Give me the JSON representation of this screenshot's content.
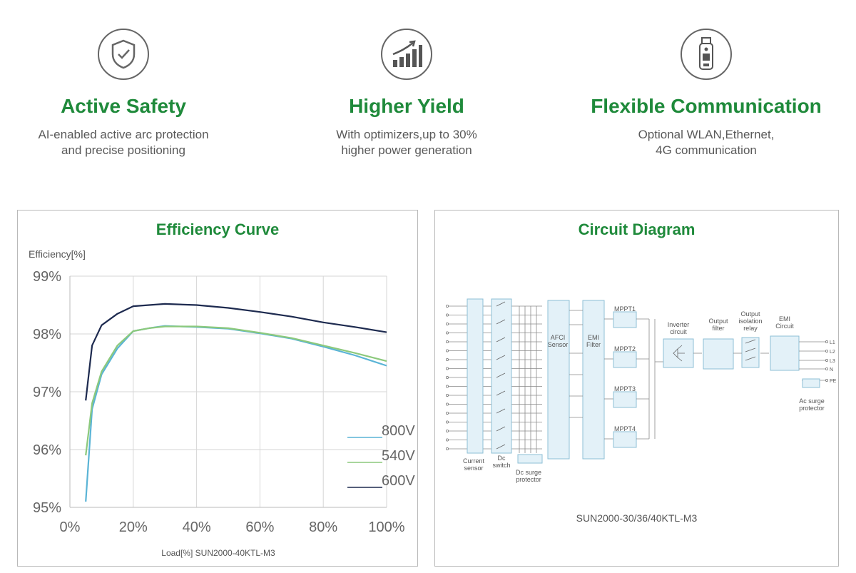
{
  "features": [
    {
      "title": "Active Safety",
      "desc_lines": [
        "AI-enabled active arc protection",
        "and precise positioning"
      ],
      "icon": "shield-check-icon"
    },
    {
      "title": "Higher Yield",
      "desc_lines": [
        "With optimizers,up to 30%",
        "higher power generation"
      ],
      "icon": "bar-chart-up-icon"
    },
    {
      "title": "Flexible Communication",
      "desc_lines": [
        "Optional WLAN,Ethernet,",
        "4G communication"
      ],
      "icon": "dongle-icon"
    }
  ],
  "efficiency_panel": {
    "title": "Efficiency Curve"
  },
  "circuit_panel": {
    "title": "Circuit Diagram",
    "caption": "SUN2000-30/36/40KTL-M3",
    "labels": {
      "current_sensor": [
        "Current",
        "sensor"
      ],
      "dc_switch": [
        "Dc",
        "switch"
      ],
      "dc_surge": [
        "Dc surge",
        "protector"
      ],
      "afci": [
        "AFCI",
        "Sensor"
      ],
      "emi_filter": [
        "EMI",
        "Filter"
      ],
      "mppt": [
        "MPPT1",
        "MPPT2",
        "MPPT3",
        "MPPT4"
      ],
      "inverter": [
        "Inverter",
        "circuit"
      ],
      "output_filter": [
        "Output",
        "filter"
      ],
      "isolation_relay": [
        "Output",
        "isolation",
        "relay"
      ],
      "emi_circuit": [
        "EMI",
        "Circuit"
      ],
      "ac_surge": [
        "Ac surge",
        "protector"
      ],
      "lines": [
        "L1",
        "L2",
        "L3",
        "N",
        "PE"
      ]
    }
  },
  "colors": {
    "accent": "#1f8a3b",
    "s800": "#5ab4d6",
    "s540": "#8cc97c",
    "s600": "#1d2a4f"
  },
  "chart_data": {
    "type": "line",
    "title": "Efficiency Curve",
    "ylabel": "Efficiency[%]",
    "xlabel": "Load[%] SUN2000-40KTL-M3",
    "xlim": [
      0,
      100
    ],
    "ylim": [
      95,
      99
    ],
    "x_ticks": [
      "0%",
      "20%",
      "40%",
      "60%",
      "80%",
      "100%"
    ],
    "y_ticks": [
      "95%",
      "96%",
      "97%",
      "98%",
      "99%"
    ],
    "grid": true,
    "legend_position": "bottom-right",
    "x": [
      5,
      7,
      10,
      15,
      20,
      25,
      30,
      40,
      50,
      60,
      70,
      80,
      90,
      100
    ],
    "series": [
      {
        "name": "800V",
        "color": "#5ab4d6",
        "values": [
          95.1,
          96.7,
          97.3,
          97.75,
          98.05,
          98.1,
          98.14,
          98.12,
          98.09,
          98.01,
          97.92,
          97.78,
          97.63,
          97.45
        ]
      },
      {
        "name": "540V",
        "color": "#8cc97c",
        "values": [
          95.9,
          96.8,
          97.35,
          97.8,
          98.05,
          98.1,
          98.13,
          98.13,
          98.1,
          98.02,
          97.93,
          97.8,
          97.67,
          97.53
        ]
      },
      {
        "name": "600V",
        "color": "#1d2a4f",
        "values": [
          96.85,
          97.8,
          98.15,
          98.35,
          98.48,
          98.5,
          98.52,
          98.5,
          98.45,
          98.38,
          98.3,
          98.2,
          98.12,
          98.03
        ]
      }
    ]
  }
}
